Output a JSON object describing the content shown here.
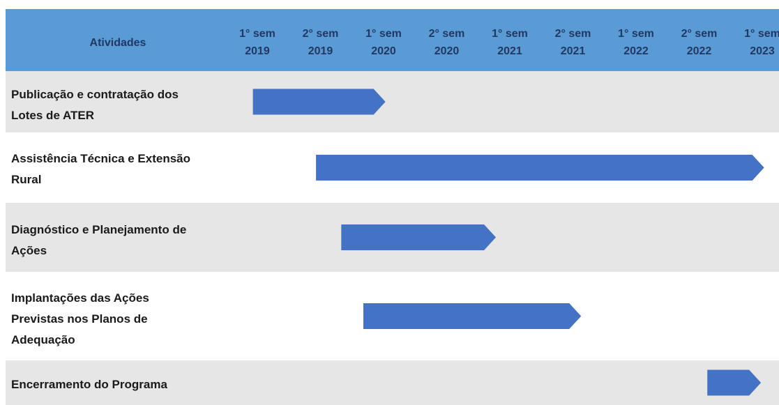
{
  "colors": {
    "header_bg": "#5b9bd5",
    "header_text": "#1f3864",
    "row_shaded": "#e7e6e6",
    "row_plain": "#ffffff",
    "bar": "#4472c4"
  },
  "chart_data": {
    "type": "gantt",
    "title": "",
    "header_label": "Atividades",
    "periods": [
      {
        "line1": "1° sem",
        "line2": "2019"
      },
      {
        "line1": "2° sem",
        "line2": "2019"
      },
      {
        "line1": "1° sem",
        "line2": "2020"
      },
      {
        "line1": "2° sem",
        "line2": "2020"
      },
      {
        "line1": "1° sem",
        "line2": "2021"
      },
      {
        "line1": "2° sem",
        "line2": "2021"
      },
      {
        "line1": "1° sem",
        "line2": "2022"
      },
      {
        "line1": "2° sem",
        "line2": "2022"
      },
      {
        "line1": "1° sem",
        "line2": "2023"
      }
    ],
    "activities": [
      {
        "lines": [
          "Publicação e contratação dos",
          "Lotes de ATER"
        ],
        "start": 0.25,
        "end": 2.35,
        "shaded": true
      },
      {
        "lines": [
          "Assistência Técnica e Extensão",
          "Rural"
        ],
        "start": 1.25,
        "end": 8.35,
        "shaded": false
      },
      {
        "lines": [
          "Diagnóstico e Planejamento de",
          "Ações"
        ],
        "start": 1.65,
        "end": 4.1,
        "shaded": true
      },
      {
        "lines": [
          "Implantações das Ações",
          "Previstas nos Planos de",
          "Adequação"
        ],
        "start": 2.0,
        "end": 5.45,
        "shaded": false
      },
      {
        "lines": [
          "Encerramento do Programa"
        ],
        "start": 7.45,
        "end": 8.3,
        "shaded": true
      }
    ]
  }
}
